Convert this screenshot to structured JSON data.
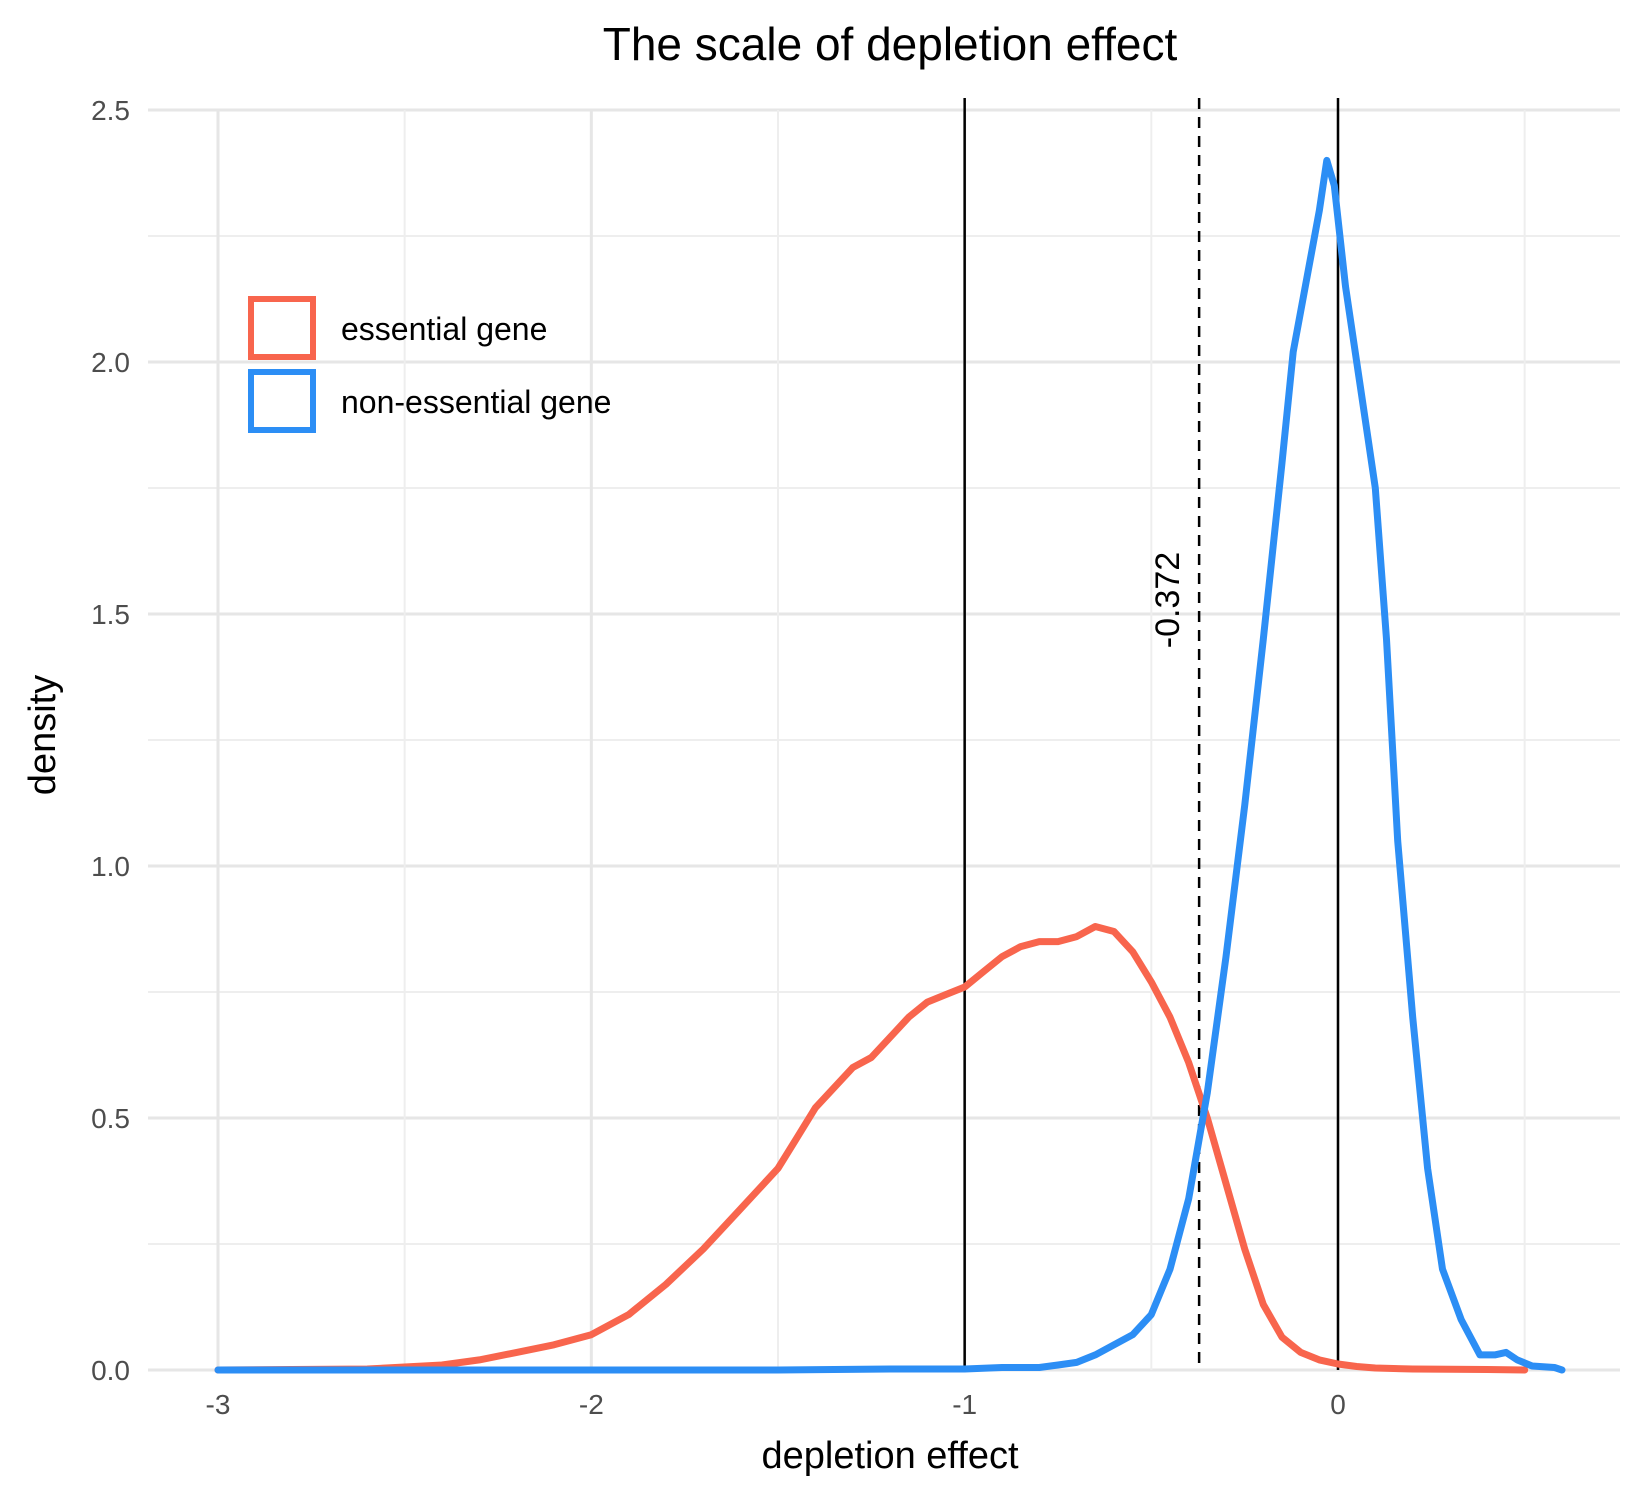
{
  "chart_data": {
    "type": "line",
    "title": "The scale of depletion effect",
    "xlabel": "depletion effect",
    "ylabel": "density",
    "xlim": [
      -3,
      0.6
    ],
    "ylim": [
      0,
      2.5
    ],
    "x_ticks": [
      -3,
      -2,
      -1,
      0
    ],
    "x_tick_labels": [
      "-3",
      "-2",
      "-1",
      "0"
    ],
    "y_ticks": [
      0,
      0.5,
      1,
      1.5,
      2,
      2.5
    ],
    "y_tick_labels": [
      "0.0",
      "0.5",
      "1.0",
      "1.5",
      "2.0",
      "2.5"
    ],
    "grid": true,
    "legend": {
      "placement": "top-left"
    },
    "vlines": [
      {
        "x": -1,
        "style": "solid"
      },
      {
        "x": 0,
        "style": "solid"
      },
      {
        "x": -0.372,
        "style": "dashed",
        "label": "-0.372"
      }
    ],
    "series": [
      {
        "name": "essential gene",
        "color": "#F8654D",
        "points": [
          [
            -3.0,
            0.0
          ],
          [
            -2.6,
            0.002
          ],
          [
            -2.4,
            0.01
          ],
          [
            -2.3,
            0.02
          ],
          [
            -2.2,
            0.035
          ],
          [
            -2.1,
            0.05
          ],
          [
            -2.0,
            0.07
          ],
          [
            -1.9,
            0.11
          ],
          [
            -1.8,
            0.17
          ],
          [
            -1.7,
            0.24
          ],
          [
            -1.6,
            0.32
          ],
          [
            -1.5,
            0.4
          ],
          [
            -1.45,
            0.46
          ],
          [
            -1.4,
            0.52
          ],
          [
            -1.35,
            0.56
          ],
          [
            -1.3,
            0.6
          ],
          [
            -1.25,
            0.62
          ],
          [
            -1.2,
            0.66
          ],
          [
            -1.15,
            0.7
          ],
          [
            -1.1,
            0.73
          ],
          [
            -1.05,
            0.745
          ],
          [
            -1.0,
            0.76
          ],
          [
            -0.95,
            0.79
          ],
          [
            -0.9,
            0.82
          ],
          [
            -0.85,
            0.84
          ],
          [
            -0.8,
            0.85
          ],
          [
            -0.75,
            0.85
          ],
          [
            -0.7,
            0.86
          ],
          [
            -0.65,
            0.88
          ],
          [
            -0.6,
            0.87
          ],
          [
            -0.55,
            0.83
          ],
          [
            -0.5,
            0.77
          ],
          [
            -0.45,
            0.7
          ],
          [
            -0.4,
            0.61
          ],
          [
            -0.35,
            0.5
          ],
          [
            -0.3,
            0.37
          ],
          [
            -0.25,
            0.24
          ],
          [
            -0.2,
            0.13
          ],
          [
            -0.15,
            0.065
          ],
          [
            -0.1,
            0.035
          ],
          [
            -0.05,
            0.02
          ],
          [
            0.0,
            0.012
          ],
          [
            0.05,
            0.007
          ],
          [
            0.1,
            0.004
          ],
          [
            0.2,
            0.002
          ],
          [
            0.4,
            0.001
          ],
          [
            0.5,
            0.0
          ]
        ]
      },
      {
        "name": "non-essential gene",
        "color": "#2C8EF5",
        "points": [
          [
            -3.0,
            0.0
          ],
          [
            -2.0,
            0.0
          ],
          [
            -1.5,
            0.0
          ],
          [
            -1.2,
            0.002
          ],
          [
            -1.0,
            0.002
          ],
          [
            -0.9,
            0.005
          ],
          [
            -0.8,
            0.005
          ],
          [
            -0.75,
            0.01
          ],
          [
            -0.7,
            0.015
          ],
          [
            -0.65,
            0.03
          ],
          [
            -0.6,
            0.05
          ],
          [
            -0.55,
            0.07
          ],
          [
            -0.5,
            0.11
          ],
          [
            -0.45,
            0.2
          ],
          [
            -0.4,
            0.34
          ],
          [
            -0.35,
            0.55
          ],
          [
            -0.3,
            0.82
          ],
          [
            -0.25,
            1.12
          ],
          [
            -0.2,
            1.45
          ],
          [
            -0.15,
            1.8
          ],
          [
            -0.12,
            2.02
          ],
          [
            -0.08,
            2.18
          ],
          [
            -0.05,
            2.3
          ],
          [
            -0.03,
            2.4
          ],
          [
            -0.01,
            2.35
          ],
          [
            0.02,
            2.15
          ],
          [
            0.05,
            2.0
          ],
          [
            0.08,
            1.85
          ],
          [
            0.1,
            1.75
          ],
          [
            0.13,
            1.45
          ],
          [
            0.16,
            1.05
          ],
          [
            0.2,
            0.7
          ],
          [
            0.24,
            0.4
          ],
          [
            0.28,
            0.2
          ],
          [
            0.33,
            0.1
          ],
          [
            0.38,
            0.03
          ],
          [
            0.42,
            0.03
          ],
          [
            0.45,
            0.035
          ],
          [
            0.48,
            0.02
          ],
          [
            0.52,
            0.008
          ],
          [
            0.58,
            0.005
          ],
          [
            0.6,
            0.0
          ]
        ]
      }
    ]
  }
}
